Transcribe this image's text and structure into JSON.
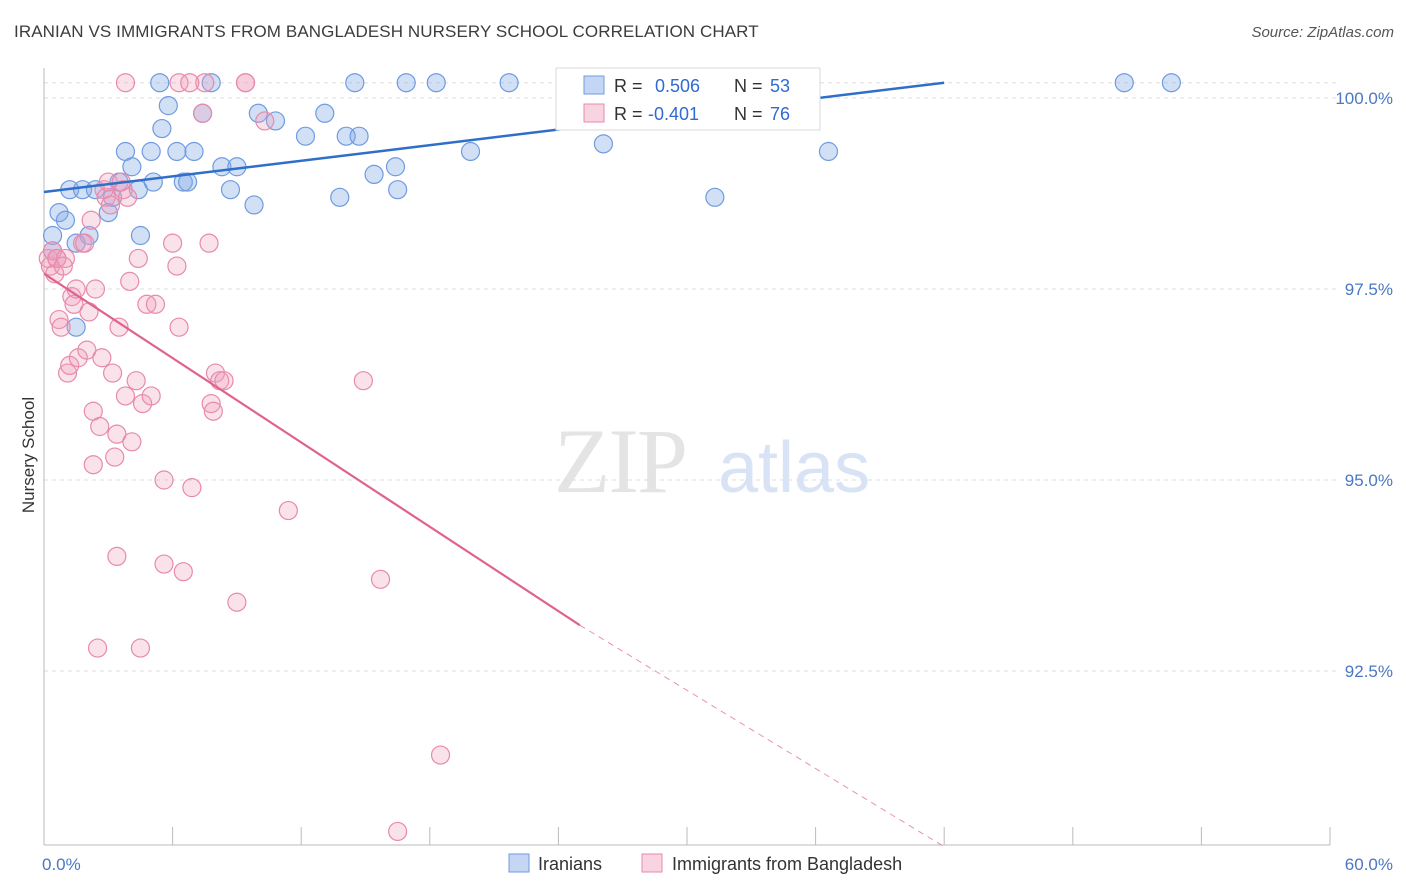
{
  "title": "IRANIAN VS IMMIGRANTS FROM BANGLADESH NURSERY SCHOOL CORRELATION CHART",
  "source": "Source: ZipAtlas.com",
  "watermark": {
    "zip": "ZIP",
    "atlas": "atlas"
  },
  "colors": {
    "blue": "#6f9be0",
    "blue_fill": "rgba(125,165,228,0.35)",
    "blue_line": "#2f6ec9",
    "pink": "#e88aaa",
    "pink_fill": "rgba(240,160,190,0.30)",
    "pink_line": "#e0638f",
    "tick_text": "#4a78c2",
    "grid": "#dedede"
  },
  "legend": {
    "row1": {
      "r_label": "R =",
      "r_value": "0.506",
      "n_label": "N =",
      "n_value": "53"
    },
    "row2": {
      "r_label": "R =",
      "r_value": "-0.401",
      "n_label": "N =",
      "n_value": "76"
    }
  },
  "chart_data": {
    "type": "scatter",
    "title": "IRANIAN VS IMMIGRANTS FROM BANGLADESH NURSERY SCHOOL CORRELATION CHART",
    "xlabel": "",
    "ylabel": "Nursery School",
    "xlim": [
      0,
      60
    ],
    "ylim": [
      90.2,
      100.4
    ],
    "x_tick_labels": [
      {
        "value": 0,
        "label": "0.0%"
      },
      {
        "value": 60,
        "label": "60.0%"
      }
    ],
    "x_minor_ticks": [
      6,
      12,
      18,
      24,
      30,
      36,
      42,
      48,
      54,
      60
    ],
    "y_ticks": [
      {
        "value": 100.0,
        "label": "100.0%"
      },
      {
        "value": 97.5,
        "label": "97.5%"
      },
      {
        "value": 95.0,
        "label": "95.0%"
      },
      {
        "value": 92.5,
        "label": "92.5%"
      }
    ],
    "top_grid": 100.2,
    "grid": true,
    "legend_position": "top-center",
    "series": [
      {
        "name": "Iranians",
        "trend": {
          "x": [
            0,
            42
          ],
          "y": [
            98.77,
            100.2
          ],
          "dashed_extension": null
        },
        "points": [
          [
            0.4,
            98.2
          ],
          [
            0.7,
            98.5
          ],
          [
            1.0,
            98.4
          ],
          [
            1.2,
            98.8
          ],
          [
            1.5,
            98.1
          ],
          [
            1.8,
            98.8
          ],
          [
            2.1,
            98.2
          ],
          [
            2.4,
            98.8
          ],
          [
            3.0,
            98.5
          ],
          [
            3.2,
            98.7
          ],
          [
            3.5,
            98.9
          ],
          [
            3.8,
            99.3
          ],
          [
            4.1,
            99.1
          ],
          [
            4.4,
            98.8
          ],
          [
            4.5,
            98.2
          ],
          [
            5.0,
            99.3
          ],
          [
            5.1,
            98.9
          ],
          [
            5.4,
            100.2
          ],
          [
            5.5,
            99.6
          ],
          [
            5.8,
            99.9
          ],
          [
            6.2,
            99.3
          ],
          [
            6.5,
            98.9
          ],
          [
            6.7,
            98.9
          ],
          [
            7.0,
            99.3
          ],
          [
            7.4,
            99.8
          ],
          [
            7.8,
            100.2
          ],
          [
            8.3,
            99.1
          ],
          [
            8.7,
            98.8
          ],
          [
            9.0,
            99.1
          ],
          [
            9.8,
            98.6
          ],
          [
            10.0,
            99.8
          ],
          [
            10.8,
            99.7
          ],
          [
            12.2,
            99.5
          ],
          [
            13.1,
            99.8
          ],
          [
            13.8,
            98.7
          ],
          [
            14.1,
            99.5
          ],
          [
            14.5,
            100.2
          ],
          [
            14.7,
            99.5
          ],
          [
            15.4,
            99.0
          ],
          [
            16.4,
            99.1
          ],
          [
            16.5,
            98.8
          ],
          [
            16.9,
            100.2
          ],
          [
            18.3,
            100.2
          ],
          [
            19.9,
            99.3
          ],
          [
            21.7,
            100.2
          ],
          [
            26.1,
            99.4
          ],
          [
            31.3,
            98.7
          ],
          [
            35.6,
            100.2
          ],
          [
            36.6,
            99.3
          ],
          [
            50.4,
            100.2
          ],
          [
            52.6,
            100.2
          ],
          [
            1.5,
            97.0
          ],
          [
            0.4,
            98.0
          ]
        ]
      },
      {
        "name": "Immigrants from Bangladesh",
        "trend": {
          "x": [
            0,
            25
          ],
          "y": [
            97.7,
            93.1
          ],
          "dashed_extension": {
            "x": [
              25,
              42
            ],
            "y": [
              93.1,
              90.2
            ]
          }
        },
        "points": [
          [
            0.2,
            97.9
          ],
          [
            0.3,
            97.8
          ],
          [
            0.4,
            98.0
          ],
          [
            0.5,
            97.7
          ],
          [
            0.6,
            97.9
          ],
          [
            0.7,
            97.1
          ],
          [
            0.8,
            97.0
          ],
          [
            1.0,
            97.9
          ],
          [
            1.1,
            96.4
          ],
          [
            1.2,
            96.5
          ],
          [
            1.3,
            97.4
          ],
          [
            1.4,
            97.3
          ],
          [
            1.5,
            97.5
          ],
          [
            1.6,
            96.6
          ],
          [
            1.8,
            98.1
          ],
          [
            1.9,
            98.1
          ],
          [
            2.0,
            96.7
          ],
          [
            2.1,
            97.2
          ],
          [
            2.2,
            98.4
          ],
          [
            2.3,
            95.9
          ],
          [
            2.3,
            95.2
          ],
          [
            2.4,
            97.5
          ],
          [
            2.5,
            92.8
          ],
          [
            2.6,
            95.7
          ],
          [
            2.7,
            96.6
          ],
          [
            2.8,
            98.8
          ],
          [
            2.9,
            98.7
          ],
          [
            3.0,
            98.9
          ],
          [
            3.1,
            98.6
          ],
          [
            3.2,
            96.4
          ],
          [
            3.3,
            95.3
          ],
          [
            3.4,
            95.6
          ],
          [
            3.4,
            94.0
          ],
          [
            3.5,
            97.0
          ],
          [
            3.6,
            98.9
          ],
          [
            3.7,
            98.8
          ],
          [
            3.8,
            96.1
          ],
          [
            4.0,
            97.6
          ],
          [
            4.1,
            95.5
          ],
          [
            4.3,
            96.3
          ],
          [
            4.4,
            97.9
          ],
          [
            4.5,
            92.8
          ],
          [
            4.6,
            96.0
          ],
          [
            4.8,
            97.3
          ],
          [
            5.0,
            96.1
          ],
          [
            5.2,
            97.3
          ],
          [
            5.6,
            95.0
          ],
          [
            5.6,
            93.9
          ],
          [
            6.0,
            98.1
          ],
          [
            6.2,
            97.8
          ],
          [
            6.3,
            97.0
          ],
          [
            6.5,
            93.8
          ],
          [
            6.9,
            94.9
          ],
          [
            7.5,
            100.2
          ],
          [
            7.7,
            98.1
          ],
          [
            7.8,
            96.0
          ],
          [
            7.9,
            95.9
          ],
          [
            8.0,
            96.4
          ],
          [
            8.2,
            96.3
          ],
          [
            8.4,
            96.3
          ],
          [
            9.0,
            93.4
          ],
          [
            9.4,
            100.2
          ],
          [
            10.3,
            99.7
          ],
          [
            11.4,
            94.6
          ],
          [
            14.9,
            96.3
          ],
          [
            15.7,
            93.7
          ],
          [
            16.5,
            90.4
          ],
          [
            18.5,
            91.4
          ],
          [
            3.8,
            100.2
          ],
          [
            6.3,
            100.2
          ],
          [
            6.8,
            100.2
          ],
          [
            9.4,
            100.2
          ],
          [
            7.4,
            99.8
          ],
          [
            3.9,
            98.7
          ],
          [
            0.6,
            97.9
          ],
          [
            0.9,
            97.8
          ]
        ]
      }
    ]
  }
}
